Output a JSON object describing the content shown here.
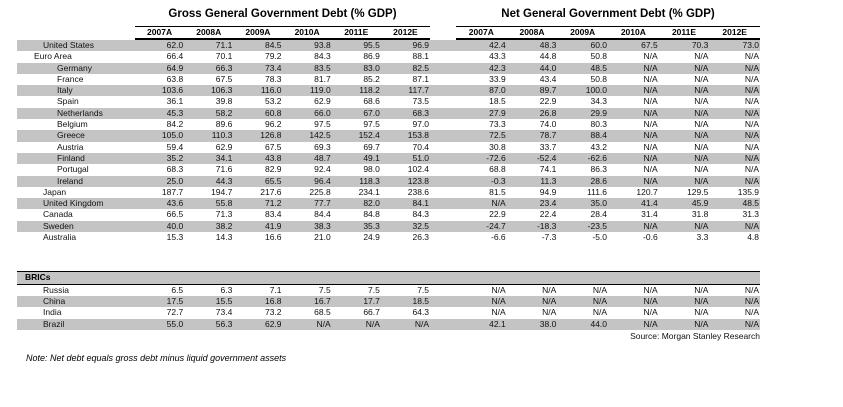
{
  "gross": {
    "title": "Gross General Government Debt (% GDP)",
    "years": [
      "2007A",
      "2008A",
      "2009A",
      "2010A",
      "2011E",
      "2012E"
    ]
  },
  "net": {
    "title": "Net General Government Debt (% GDP)",
    "years": [
      "2007A",
      "2008A",
      "2009A",
      "2010A",
      "2011E",
      "2012E"
    ]
  },
  "rows": [
    {
      "label": "United States",
      "indent": 1,
      "gross": [
        "62.0",
        "71.1",
        "84.5",
        "93.8",
        "95.5",
        "96.9"
      ],
      "net": [
        "42.4",
        "48.3",
        "60.0",
        "67.5",
        "70.3",
        "73.0"
      ]
    },
    {
      "label": "Euro Area",
      "indent": 0,
      "gross": [
        "66.4",
        "70.1",
        "79.2",
        "84.3",
        "86.9",
        "88.1"
      ],
      "net": [
        "43.3",
        "44.8",
        "50.8",
        "N/A",
        "N/A",
        "N/A"
      ]
    },
    {
      "label": "Germany",
      "indent": 2,
      "gross": [
        "64.9",
        "66.3",
        "73.4",
        "83.5",
        "83.0",
        "82.5"
      ],
      "net": [
        "42.3",
        "44.0",
        "48.5",
        "N/A",
        "N/A",
        "N/A"
      ]
    },
    {
      "label": "France",
      "indent": 2,
      "gross": [
        "63.8",
        "67.5",
        "78.3",
        "81.7",
        "85.2",
        "87.1"
      ],
      "net": [
        "33.9",
        "43.4",
        "50.8",
        "N/A",
        "N/A",
        "N/A"
      ]
    },
    {
      "label": "Italy",
      "indent": 2,
      "gross": [
        "103.6",
        "106.3",
        "116.0",
        "119.0",
        "118.2",
        "117.7"
      ],
      "net": [
        "87.0",
        "89.7",
        "100.0",
        "N/A",
        "N/A",
        "N/A"
      ]
    },
    {
      "label": "Spain",
      "indent": 2,
      "gross": [
        "36.1",
        "39.8",
        "53.2",
        "62.9",
        "68.6",
        "73.5"
      ],
      "net": [
        "18.5",
        "22.9",
        "34.3",
        "N/A",
        "N/A",
        "N/A"
      ]
    },
    {
      "label": "Netherlands",
      "indent": 2,
      "gross": [
        "45.3",
        "58.2",
        "60.8",
        "66.0",
        "67.0",
        "68.3"
      ],
      "net": [
        "27.9",
        "26.8",
        "29.9",
        "N/A",
        "N/A",
        "N/A"
      ]
    },
    {
      "label": "Belgium",
      "indent": 2,
      "gross": [
        "84.2",
        "89.6",
        "96.2",
        "97.5",
        "97.5",
        "97.0"
      ],
      "net": [
        "73.3",
        "74.0",
        "80.3",
        "N/A",
        "N/A",
        "N/A"
      ]
    },
    {
      "label": "Greece",
      "indent": 2,
      "gross": [
        "105.0",
        "110.3",
        "126.8",
        "142.5",
        "152.4",
        "153.8"
      ],
      "net": [
        "72.5",
        "78.7",
        "88.4",
        "N/A",
        "N/A",
        "N/A"
      ]
    },
    {
      "label": "Austria",
      "indent": 2,
      "gross": [
        "59.4",
        "62.9",
        "67.5",
        "69.3",
        "69.7",
        "70.4"
      ],
      "net": [
        "30.8",
        "33.7",
        "43.2",
        "N/A",
        "N/A",
        "N/A"
      ]
    },
    {
      "label": "Finland",
      "indent": 2,
      "gross": [
        "35.2",
        "34.1",
        "43.8",
        "48.7",
        "49.1",
        "51.0"
      ],
      "net": [
        "-72.6",
        "-52.4",
        "-62.6",
        "N/A",
        "N/A",
        "N/A"
      ]
    },
    {
      "label": "Portugal",
      "indent": 2,
      "gross": [
        "68.3",
        "71.6",
        "82.9",
        "92.4",
        "98.0",
        "102.4"
      ],
      "net": [
        "68.8",
        "74.1",
        "86.3",
        "N/A",
        "N/A",
        "N/A"
      ]
    },
    {
      "label": "Ireland",
      "indent": 2,
      "gross": [
        "25.0",
        "44.3",
        "65.5",
        "96.4",
        "118.3",
        "123.8"
      ],
      "net": [
        "-0.3",
        "11.3",
        "28.6",
        "N/A",
        "N/A",
        "N/A"
      ]
    },
    {
      "label": "Japan",
      "indent": 1,
      "gross": [
        "187.7",
        "194.7",
        "217.6",
        "225.8",
        "234.1",
        "238.6"
      ],
      "net": [
        "81.5",
        "94.9",
        "111.6",
        "120.7",
        "129.5",
        "135.9"
      ]
    },
    {
      "label": "United Kingdom",
      "indent": 1,
      "gross": [
        "43.6",
        "55.8",
        "71.2",
        "77.7",
        "82.0",
        "84.1"
      ],
      "net": [
        "N/A",
        "23.4",
        "35.0",
        "41.4",
        "45.9",
        "48.5"
      ]
    },
    {
      "label": "Canada",
      "indent": 1,
      "gross": [
        "66.5",
        "71.3",
        "83.4",
        "84.4",
        "84.8",
        "84.3"
      ],
      "net": [
        "22.9",
        "22.4",
        "28.4",
        "31.4",
        "31.8",
        "31.3"
      ]
    },
    {
      "label": "Sweden",
      "indent": 1,
      "gross": [
        "40.0",
        "38.2",
        "41.9",
        "38.3",
        "35.3",
        "32.5"
      ],
      "net": [
        "-24.7",
        "-18.3",
        "-23.5",
        "N/A",
        "N/A",
        "N/A"
      ]
    },
    {
      "label": "Australia",
      "indent": 1,
      "gross": [
        "15.3",
        "14.3",
        "16.6",
        "21.0",
        "24.9",
        "26.3"
      ],
      "net": [
        "-6.6",
        "-7.3",
        "-5.0",
        "-0.6",
        "3.3",
        "4.8"
      ]
    }
  ],
  "brics": {
    "header": "BRICs",
    "rows": [
      {
        "label": "Russia",
        "indent": 1,
        "gross": [
          "6.5",
          "6.3",
          "7.1",
          "7.5",
          "7.5",
          "7.5"
        ],
        "net": [
          "N/A",
          "N/A",
          "N/A",
          "N/A",
          "N/A",
          "N/A"
        ]
      },
      {
        "label": "China",
        "indent": 1,
        "gross": [
          "17.5",
          "15.5",
          "16.8",
          "16.7",
          "17.7",
          "18.5"
        ],
        "net": [
          "N/A",
          "N/A",
          "N/A",
          "N/A",
          "N/A",
          "N/A"
        ]
      },
      {
        "label": "India",
        "indent": 1,
        "gross": [
          "72.7",
          "73.4",
          "73.2",
          "68.5",
          "66.7",
          "64.3"
        ],
        "net": [
          "N/A",
          "N/A",
          "N/A",
          "N/A",
          "N/A",
          "N/A"
        ]
      },
      {
        "label": "Brazil",
        "indent": 1,
        "gross": [
          "55.0",
          "56.3",
          "62.9",
          "N/A",
          "N/A",
          "N/A"
        ],
        "net": [
          "42.1",
          "38.0",
          "44.0",
          "N/A",
          "N/A",
          "N/A"
        ]
      }
    ]
  },
  "source": "Source: Morgan Stanley Research",
  "note": "Note: Net debt equals gross debt minus liquid government assets",
  "colors": {
    "stripe": "#c4c4c4",
    "text": "#111111"
  }
}
